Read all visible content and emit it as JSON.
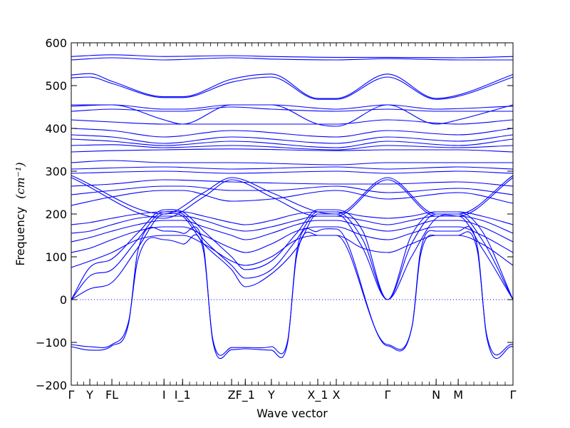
{
  "chart_data": {
    "type": "line",
    "xlabel": "Wave vector",
    "ylabel": "Frequency",
    "ylabel_unit": "(cm⁻¹)",
    "ylim": [
      -200,
      600
    ],
    "yticks": [
      -200,
      -100,
      0,
      100,
      200,
      300,
      400,
      500,
      600
    ],
    "xlim": [
      0,
      1
    ],
    "grid": false,
    "zero_line": "dotted",
    "line_color": "#0000ff",
    "high_symmetry_points": [
      {
        "label": "Γ",
        "x": 0.0
      },
      {
        "label": "Y",
        "x": 0.042
      },
      {
        "label": "FL",
        "x": 0.092
      },
      {
        "label": "I",
        "x": 0.21
      },
      {
        "label": "I_1",
        "x": 0.252
      },
      {
        "label": "Z",
        "x": 0.363
      },
      {
        "label": "F_1",
        "x": 0.394
      },
      {
        "label": "Y",
        "x": 0.453
      },
      {
        "label": "X_1",
        "x": 0.558
      },
      {
        "label": "X",
        "x": 0.6
      },
      {
        "label": "Γ",
        "x": 0.716
      },
      {
        "label": "N",
        "x": 0.826
      },
      {
        "label": "M",
        "x": 0.876
      },
      {
        "label": "Γ",
        "x": 1.0
      }
    ],
    "series": [
      {
        "x": [
          0,
          0.042,
          0.092,
          0.13,
          0.15,
          0.21,
          0.252,
          0.3,
          0.32,
          0.363,
          0.394,
          0.453,
          0.49,
          0.51,
          0.558,
          0.6,
          0.716,
          0.772,
          0.79,
          0.826,
          0.876,
          0.92,
          0.94,
          1.0
        ],
        "y": [
          -105,
          -110,
          -105,
          -50,
          90,
          140,
          130,
          110,
          -90,
          -112,
          -112,
          -110,
          -95,
          100,
          150,
          150,
          -105,
          -60,
          100,
          150,
          150,
          110,
          -80,
          -105
        ]
      },
      {
        "x": [
          0,
          0.042,
          0.092,
          0.13,
          0.15,
          0.21,
          0.252,
          0.3,
          0.32,
          0.363,
          0.394,
          0.453,
          0.49,
          0.51,
          0.558,
          0.6,
          0.716,
          0.772,
          0.79,
          0.826,
          0.876,
          0.92,
          0.94,
          1.0
        ],
        "y": [
          -110,
          -118,
          -108,
          -55,
          110,
          160,
          155,
          120,
          -95,
          -117,
          -115,
          -118,
          -100,
          110,
          160,
          165,
          -108,
          -60,
          110,
          160,
          160,
          120,
          -85,
          -110
        ]
      },
      {
        "x": [
          0,
          0.042,
          0.092,
          0.15,
          0.21,
          0.252,
          0.3,
          0.363,
          0.394,
          0.453,
          0.51,
          0.558,
          0.6,
          0.66,
          0.716,
          0.77,
          0.826,
          0.876,
          0.93,
          1.0
        ],
        "y": [
          0,
          25,
          40,
          120,
          200,
          195,
          130,
          70,
          30,
          60,
          120,
          200,
          200,
          120,
          0,
          100,
          190,
          195,
          120,
          0
        ]
      },
      {
        "x": [
          0,
          0.042,
          0.092,
          0.15,
          0.21,
          0.252,
          0.3,
          0.363,
          0.394,
          0.453,
          0.51,
          0.558,
          0.6,
          0.66,
          0.716,
          0.77,
          0.826,
          0.876,
          0.93,
          1.0
        ],
        "y": [
          0,
          55,
          70,
          140,
          205,
          200,
          140,
          80,
          50,
          70,
          140,
          205,
          205,
          140,
          0,
          130,
          200,
          200,
          140,
          0
        ]
      },
      {
        "x": [
          0,
          0.042,
          0.092,
          0.15,
          0.21,
          0.252,
          0.3,
          0.363,
          0.394,
          0.453,
          0.51,
          0.558,
          0.6,
          0.66,
          0.716,
          0.77,
          0.826,
          0.876,
          0.93,
          1.0
        ],
        "y": [
          0,
          75,
          95,
          155,
          210,
          205,
          160,
          100,
          70,
          90,
          155,
          210,
          210,
          160,
          0,
          150,
          205,
          205,
          160,
          0
        ]
      },
      {
        "x": [
          0,
          0.042,
          0.092,
          0.15,
          0.21,
          0.252,
          0.3,
          0.363,
          0.394,
          0.453,
          0.51,
          0.558,
          0.6,
          0.66,
          0.716,
          0.77,
          0.826,
          0.876,
          0.93,
          1.0
        ],
        "y": [
          75,
          90,
          110,
          140,
          150,
          150,
          130,
          90,
          80,
          100,
          140,
          150,
          150,
          120,
          110,
          130,
          150,
          150,
          130,
          80
        ]
      },
      {
        "x": [
          0,
          0.042,
          0.092,
          0.15,
          0.21,
          0.252,
          0.3,
          0.363,
          0.394,
          0.453,
          0.51,
          0.558,
          0.6,
          0.66,
          0.716,
          0.77,
          0.826,
          0.876,
          0.93,
          1.0
        ],
        "y": [
          110,
          120,
          140,
          160,
          170,
          170,
          150,
          120,
          110,
          130,
          160,
          170,
          170,
          150,
          140,
          155,
          170,
          170,
          150,
          110
        ]
      },
      {
        "x": [
          0,
          0.042,
          0.092,
          0.15,
          0.21,
          0.252,
          0.3,
          0.363,
          0.394,
          0.453,
          0.51,
          0.558,
          0.6,
          0.66,
          0.716,
          0.77,
          0.826,
          0.876,
          0.93,
          1.0
        ],
        "y": [
          135,
          145,
          160,
          175,
          185,
          185,
          170,
          150,
          140,
          155,
          175,
          185,
          185,
          170,
          160,
          170,
          185,
          185,
          170,
          135
        ]
      },
      {
        "x": [
          0,
          0.042,
          0.092,
          0.15,
          0.21,
          0.252,
          0.3,
          0.363,
          0.394,
          0.453,
          0.51,
          0.558,
          0.6,
          0.66,
          0.716,
          0.77,
          0.826,
          0.876,
          0.93,
          1.0
        ],
        "y": [
          155,
          160,
          175,
          190,
          195,
          195,
          185,
          165,
          160,
          170,
          185,
          195,
          195,
          185,
          175,
          185,
          195,
          195,
          185,
          155
        ]
      },
      {
        "x": [
          0,
          0.042,
          0.092,
          0.15,
          0.21,
          0.252,
          0.3,
          0.363,
          0.394,
          0.453,
          0.51,
          0.558,
          0.6,
          0.66,
          0.716,
          0.77,
          0.826,
          0.876,
          0.93,
          1.0
        ],
        "y": [
          175,
          180,
          190,
          200,
          205,
          205,
          195,
          180,
          175,
          185,
          200,
          205,
          205,
          195,
          190,
          195,
          205,
          205,
          195,
          175
        ]
      },
      {
        "x": [
          0,
          0.21,
          0.3,
          0.363,
          0.453,
          0.558,
          0.6,
          0.716,
          0.826,
          0.876,
          1.0
        ],
        "y": [
          290,
          200,
          250,
          285,
          250,
          205,
          200,
          285,
          200,
          200,
          290
        ]
      },
      {
        "x": [
          0,
          0.21,
          0.3,
          0.363,
          0.453,
          0.558,
          0.6,
          0.716,
          0.826,
          0.876,
          1.0
        ],
        "y": [
          285,
          190,
          240,
          280,
          240,
          195,
          195,
          280,
          195,
          195,
          285
        ]
      },
      {
        "x": [
          0,
          0.092,
          0.21,
          0.252,
          0.363,
          0.453,
          0.6,
          0.716,
          0.876,
          1.0
        ],
        "y": [
          220,
          240,
          255,
          255,
          230,
          235,
          255,
          235,
          250,
          225
        ]
      },
      {
        "x": [
          0,
          0.092,
          0.21,
          0.252,
          0.363,
          0.453,
          0.6,
          0.716,
          0.876,
          1.0
        ],
        "y": [
          245,
          255,
          265,
          265,
          255,
          255,
          265,
          250,
          260,
          245
        ]
      },
      {
        "x": [
          0,
          0.092,
          0.21,
          0.363,
          0.6,
          0.716,
          0.876,
          1.0
        ],
        "y": [
          265,
          270,
          280,
          275,
          270,
          270,
          275,
          265
        ]
      },
      {
        "x": [
          0,
          0.21,
          0.363,
          0.6,
          0.716,
          0.876,
          1.0
        ],
        "y": [
          295,
          300,
          295,
          300,
          295,
          300,
          295
        ]
      },
      {
        "x": [
          0,
          0.21,
          0.363,
          0.6,
          0.716,
          0.876,
          1.0
        ],
        "y": [
          305,
          310,
          305,
          310,
          305,
          310,
          305
        ]
      },
      {
        "x": [
          0,
          0.092,
          0.21,
          0.363,
          0.6,
          0.716,
          0.876,
          1.0
        ],
        "y": [
          320,
          325,
          320,
          320,
          315,
          320,
          320,
          320
        ]
      },
      {
        "x": [
          0,
          0.092,
          0.21,
          0.363,
          0.6,
          0.716,
          0.876,
          1.0
        ],
        "y": [
          345,
          348,
          350,
          352,
          348,
          350,
          350,
          345
        ]
      },
      {
        "x": [
          0,
          0.092,
          0.21,
          0.363,
          0.6,
          0.716,
          0.876,
          1.0
        ],
        "y": [
          360,
          362,
          355,
          360,
          350,
          360,
          355,
          360
        ]
      },
      {
        "x": [
          0,
          0.092,
          0.21,
          0.363,
          0.6,
          0.716,
          0.876,
          1.0
        ],
        "y": [
          375,
          370,
          360,
          370,
          355,
          370,
          360,
          375
        ]
      },
      {
        "x": [
          0,
          0.092,
          0.21,
          0.363,
          0.6,
          0.716,
          0.876,
          1.0
        ],
        "y": [
          385,
          380,
          365,
          380,
          365,
          380,
          370,
          385
        ]
      },
      {
        "x": [
          0,
          0.092,
          0.21,
          0.363,
          0.6,
          0.716,
          0.876,
          1.0
        ],
        "y": [
          400,
          395,
          380,
          395,
          380,
          395,
          385,
          400
        ]
      },
      {
        "x": [
          0,
          0.092,
          0.21,
          0.363,
          0.6,
          0.716,
          0.876,
          1.0
        ],
        "y": [
          420,
          415,
          410,
          410,
          410,
          420,
          410,
          420
        ]
      },
      {
        "x": [
          0,
          0.092,
          0.21,
          0.252,
          0.363,
          0.453,
          0.6,
          0.716,
          0.826,
          1.0
        ],
        "y": [
          440,
          445,
          440,
          440,
          450,
          445,
          440,
          445,
          440,
          440
        ]
      },
      {
        "x": [
          0,
          0.092,
          0.21,
          0.252,
          0.363,
          0.453,
          0.6,
          0.716,
          0.826,
          1.0
        ],
        "y": [
          452,
          455,
          445,
          445,
          455,
          455,
          445,
          455,
          445,
          452
        ]
      },
      {
        "x": [
          0,
          0.042,
          0.092,
          0.21,
          0.252,
          0.363,
          0.453,
          0.558,
          0.6,
          0.716,
          0.826,
          0.876,
          1.0
        ],
        "y": [
          455,
          455,
          455,
          420,
          410,
          455,
          455,
          410,
          405,
          455,
          410,
          420,
          455
        ]
      },
      {
        "x": [
          0,
          0.042,
          0.092,
          0.21,
          0.252,
          0.363,
          0.453,
          0.558,
          0.6,
          0.716,
          0.826,
          0.876,
          1.0
        ],
        "y": [
          518,
          520,
          505,
          472,
          472,
          508,
          520,
          468,
          468,
          520,
          468,
          475,
          520
        ]
      },
      {
        "x": [
          0,
          0.042,
          0.092,
          0.21,
          0.252,
          0.363,
          0.453,
          0.558,
          0.6,
          0.716,
          0.826,
          0.876,
          1.0
        ],
        "y": [
          525,
          528,
          510,
          474,
          474,
          515,
          527,
          470,
          470,
          527,
          470,
          478,
          526
        ]
      },
      {
        "x": [
          0,
          0.092,
          0.21,
          0.363,
          0.453,
          0.6,
          0.716,
          0.876,
          1.0
        ],
        "y": [
          560,
          565,
          560,
          565,
          562,
          560,
          563,
          560,
          560
        ]
      },
      {
        "x": [
          0,
          0.092,
          0.21,
          0.363,
          0.453,
          0.6,
          0.716,
          0.876,
          1.0
        ],
        "y": [
          568,
          572,
          568,
          570,
          568,
          566,
          566,
          565,
          568
        ]
      }
    ]
  }
}
